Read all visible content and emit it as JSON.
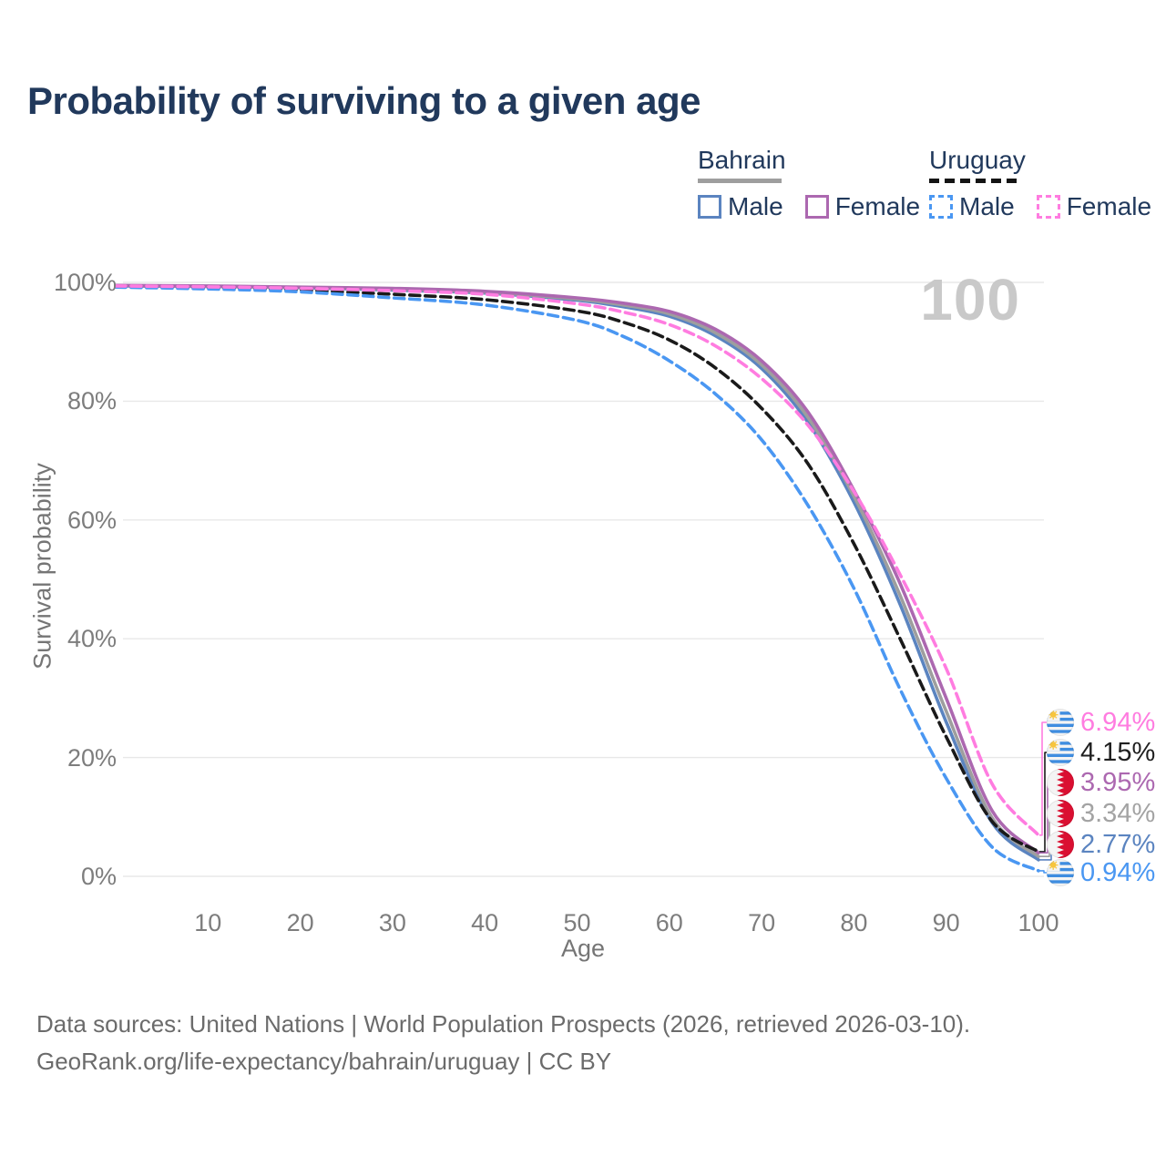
{
  "title": "Probability of surviving to a given age",
  "watermark": "100",
  "legend": {
    "bahrain": {
      "title": "Bahrain",
      "male_label": "Male",
      "female_label": "Female"
    },
    "uruguay": {
      "title": "Uruguay",
      "male_label": "Male",
      "female_label": "Female"
    }
  },
  "colors": {
    "bahrain_male": "#5b84c0",
    "bahrain_all": "#9e9e9e",
    "bahrain_female": "#ac68b0",
    "uruguay_male": "#4a97f2",
    "uruguay_all": "#1a1a1a",
    "uruguay_female": "#ff7ce0",
    "grid": "#e8e8e8",
    "title_text": "#21395c",
    "axis_text": "#7d7d7d",
    "watermark_text": "#c9c9c9"
  },
  "y_axis": {
    "label": "Survival probability",
    "ticks": [
      {
        "label": "100%",
        "value": 100
      },
      {
        "label": "80%",
        "value": 80
      },
      {
        "label": "60%",
        "value": 60
      },
      {
        "label": "40%",
        "value": 40
      },
      {
        "label": "20%",
        "value": 20
      },
      {
        "label": "0%",
        "value": 0
      }
    ]
  },
  "x_axis": {
    "label": "Age",
    "ticks": [
      {
        "label": "10",
        "value": 10
      },
      {
        "label": "20",
        "value": 20
      },
      {
        "label": "30",
        "value": 30
      },
      {
        "label": "40",
        "value": 40
      },
      {
        "label": "50",
        "value": 50
      },
      {
        "label": "60",
        "value": 60
      },
      {
        "label": "70",
        "value": 70
      },
      {
        "label": "80",
        "value": 80
      },
      {
        "label": "90",
        "value": 90
      },
      {
        "label": "100",
        "value": 100
      }
    ]
  },
  "end_labels": [
    {
      "series": "uruguay_female",
      "flag": "uruguay",
      "text": "6.94%",
      "value": 6.94,
      "color": "#ff7ce0"
    },
    {
      "series": "uruguay_all",
      "flag": "uruguay",
      "text": "4.15%",
      "value": 4.15,
      "color": "#1f1f1f"
    },
    {
      "series": "bahrain_female",
      "flag": "bahrain",
      "text": "3.95%",
      "value": 3.95,
      "color": "#ac68b0"
    },
    {
      "series": "bahrain_all",
      "flag": "bahrain",
      "text": "3.34%",
      "value": 3.34,
      "color": "#a3a3a3"
    },
    {
      "series": "bahrain_male",
      "flag": "bahrain",
      "text": "2.77%",
      "value": 2.77,
      "color": "#5b84c0"
    },
    {
      "series": "uruguay_male",
      "flag": "uruguay",
      "text": "0.94%",
      "value": 0.94,
      "color": "#4a97f2"
    }
  ],
  "footer": {
    "line1": "Data sources: United Nations | World Population Prospects (2026, retrieved 2026-03-10).",
    "line2": "GeoRank.org/life-expectancy/bahrain/uruguay | CC BY"
  },
  "chart_data": {
    "type": "line",
    "title": "Probability of surviving to a given age",
    "xlabel": "Age",
    "ylabel": "Survival probability",
    "unit": "%",
    "xlim": [
      0,
      100
    ],
    "ylim": [
      0,
      100
    ],
    "grid": "horizontal",
    "legend_position": "top-right",
    "x": [
      0,
      10,
      20,
      30,
      40,
      50,
      55,
      60,
      65,
      70,
      75,
      80,
      85,
      90,
      95,
      100
    ],
    "series": [
      {
        "name": "Bahrain Male",
        "key": "bahrain_male",
        "color": "#5b84c0",
        "dash": false,
        "values": [
          99.4,
          99.3,
          99.1,
          98.7,
          98.2,
          97.0,
          95.9,
          94.3,
          91.0,
          85.5,
          76.5,
          63.0,
          45.8,
          26.0,
          9.0,
          2.77
        ]
      },
      {
        "name": "Bahrain Both sexes",
        "key": "bahrain_all",
        "color": "#9e9e9e",
        "dash": false,
        "values": [
          99.45,
          99.35,
          99.15,
          98.85,
          98.35,
          97.2,
          96.2,
          94.7,
          91.5,
          86.1,
          77.3,
          64.0,
          47.3,
          27.8,
          9.8,
          3.34
        ]
      },
      {
        "name": "Bahrain Female",
        "key": "bahrain_female",
        "color": "#ac68b0",
        "dash": false,
        "values": [
          99.5,
          99.4,
          99.2,
          99.0,
          98.5,
          97.4,
          96.5,
          95.1,
          92.1,
          86.8,
          78.2,
          65.0,
          49.3,
          30.0,
          11.0,
          3.95
        ]
      },
      {
        "name": "Uruguay Both sexes",
        "key": "uruguay_all",
        "color": "#1a1a1a",
        "dash": true,
        "values": [
          99.3,
          99.1,
          98.7,
          98.0,
          97.1,
          95.2,
          93.3,
          90.3,
          85.6,
          78.8,
          69.5,
          56.0,
          40.0,
          23.5,
          9.2,
          4.15
        ]
      },
      {
        "name": "Uruguay Male",
        "key": "uruguay_male",
        "color": "#4a97f2",
        "dash": true,
        "values": [
          99.2,
          98.9,
          98.4,
          97.4,
          96.2,
          93.6,
          90.9,
          86.8,
          81.2,
          73.5,
          62.5,
          48.5,
          31.5,
          16.5,
          4.9,
          0.94
        ]
      },
      {
        "name": "Uruguay Female",
        "key": "uruguay_female",
        "color": "#ff7ce0",
        "dash": true,
        "values": [
          99.4,
          99.25,
          99.0,
          98.6,
          98.0,
          96.4,
          95.0,
          92.9,
          89.3,
          83.8,
          76.0,
          64.8,
          50.8,
          35.0,
          15.5,
          6.94
        ]
      }
    ]
  }
}
